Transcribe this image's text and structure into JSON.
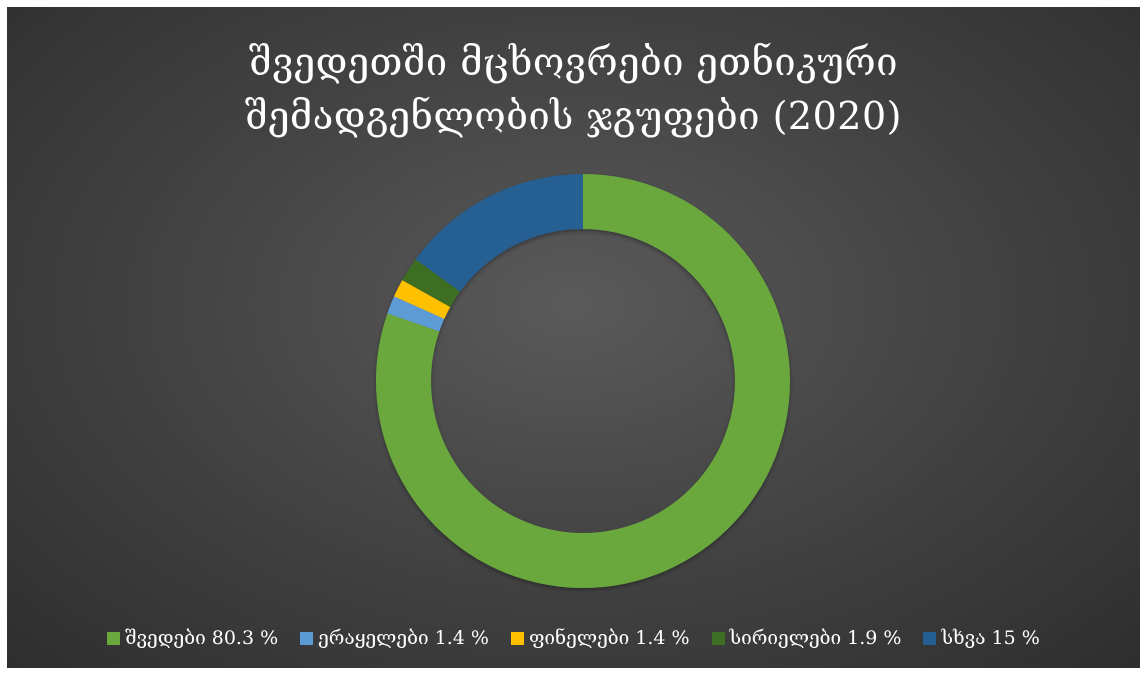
{
  "chart_data": {
    "type": "pie",
    "style": "donut",
    "title_lines": [
      "შვედეთში მცხოვრები ეთნიკური",
      "შემადგენლობის ჯგუფები (2020)"
    ],
    "slices": [
      {
        "label": "შვედები",
        "value": 80.3,
        "unit": "%",
        "color": "#6aa83e"
      },
      {
        "label": "ერაყელები",
        "value": 1.4,
        "unit": "%",
        "color": "#5b9bd5"
      },
      {
        "label": "ფინელები",
        "value": 1.4,
        "unit": "%",
        "color": "#ffc000"
      },
      {
        "label": "სირიელები",
        "value": 1.9,
        "unit": "%",
        "color": "#3e6e24"
      },
      {
        "label": "სხვა",
        "value": 15,
        "unit": "%",
        "color": "#255e91"
      }
    ],
    "legend_placement": "bottom"
  },
  "legend_entries": [
    "შვედები 80.3 %",
    "ერაყელები 1.4 %",
    "ფინელები 1.4 %",
    "სირიელები 1.9 %",
    "სხვა 15 %"
  ]
}
